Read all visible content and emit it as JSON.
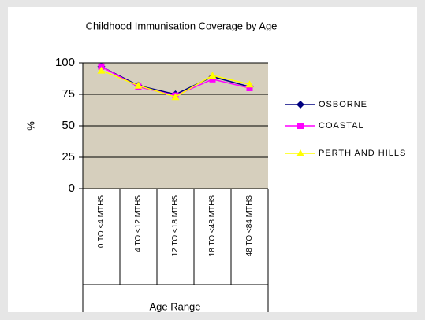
{
  "chart_data": {
    "type": "line",
    "title": "Childhood Immunisation Coverage by Age",
    "x_label": "Age Range",
    "y_label": "%",
    "categories": [
      "0 TO <4 MTHS",
      "4 TO <12 MTHS",
      "12 TO <18 MTHS",
      "18 TO <48 MTHS",
      "48 TO <84 MTHS"
    ],
    "series": [
      {
        "name": "OSBORNE",
        "color": "#000080",
        "marker": "diamond",
        "values": [
          97,
          82,
          75,
          89,
          81
        ]
      },
      {
        "name": "COASTAL",
        "color": "#ff00ff",
        "marker": "square",
        "values": [
          97,
          81,
          74,
          87,
          80
        ]
      },
      {
        "name": "PERTH AND HILLS",
        "color": "#ffff00",
        "marker": "triangle",
        "values": [
          94,
          82,
          73,
          90,
          83
        ]
      }
    ],
    "ylim": [
      0,
      100
    ],
    "yticks": [
      0,
      25,
      50,
      75,
      100
    ],
    "grid": true,
    "legend": "right"
  }
}
